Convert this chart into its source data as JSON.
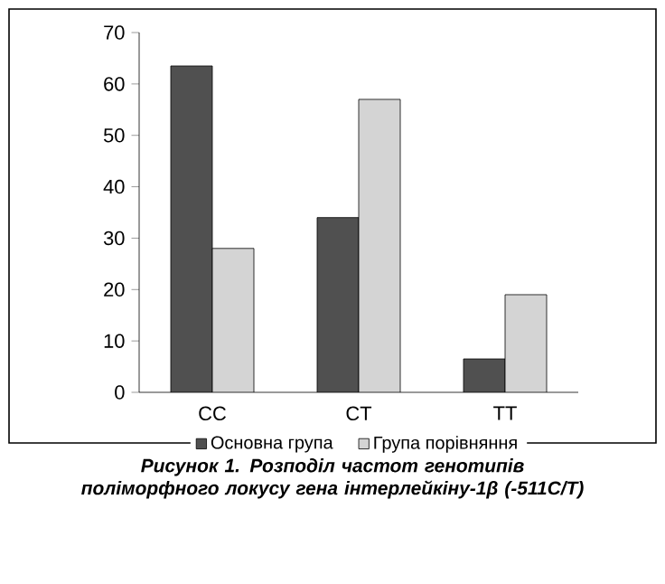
{
  "chart_data": {
    "type": "bar",
    "title": "Рисунок 1. Розподіл частот генотипів поліморфного локусу гена інтерлейкіну-1β (-511C/T)",
    "categories": [
      "CC",
      "CT",
      "TT"
    ],
    "series": [
      {
        "name": "Основна група",
        "color": "#505050",
        "values": [
          63.5,
          34,
          6.5
        ]
      },
      {
        "name": "Група порівняння",
        "color": "#d4d4d4",
        "values": [
          28,
          57,
          19
        ]
      }
    ],
    "ylim": [
      0,
      70
    ],
    "yticks": [
      0,
      10,
      20,
      30,
      40,
      50,
      60,
      70
    ],
    "legend": "bottom"
  }
}
